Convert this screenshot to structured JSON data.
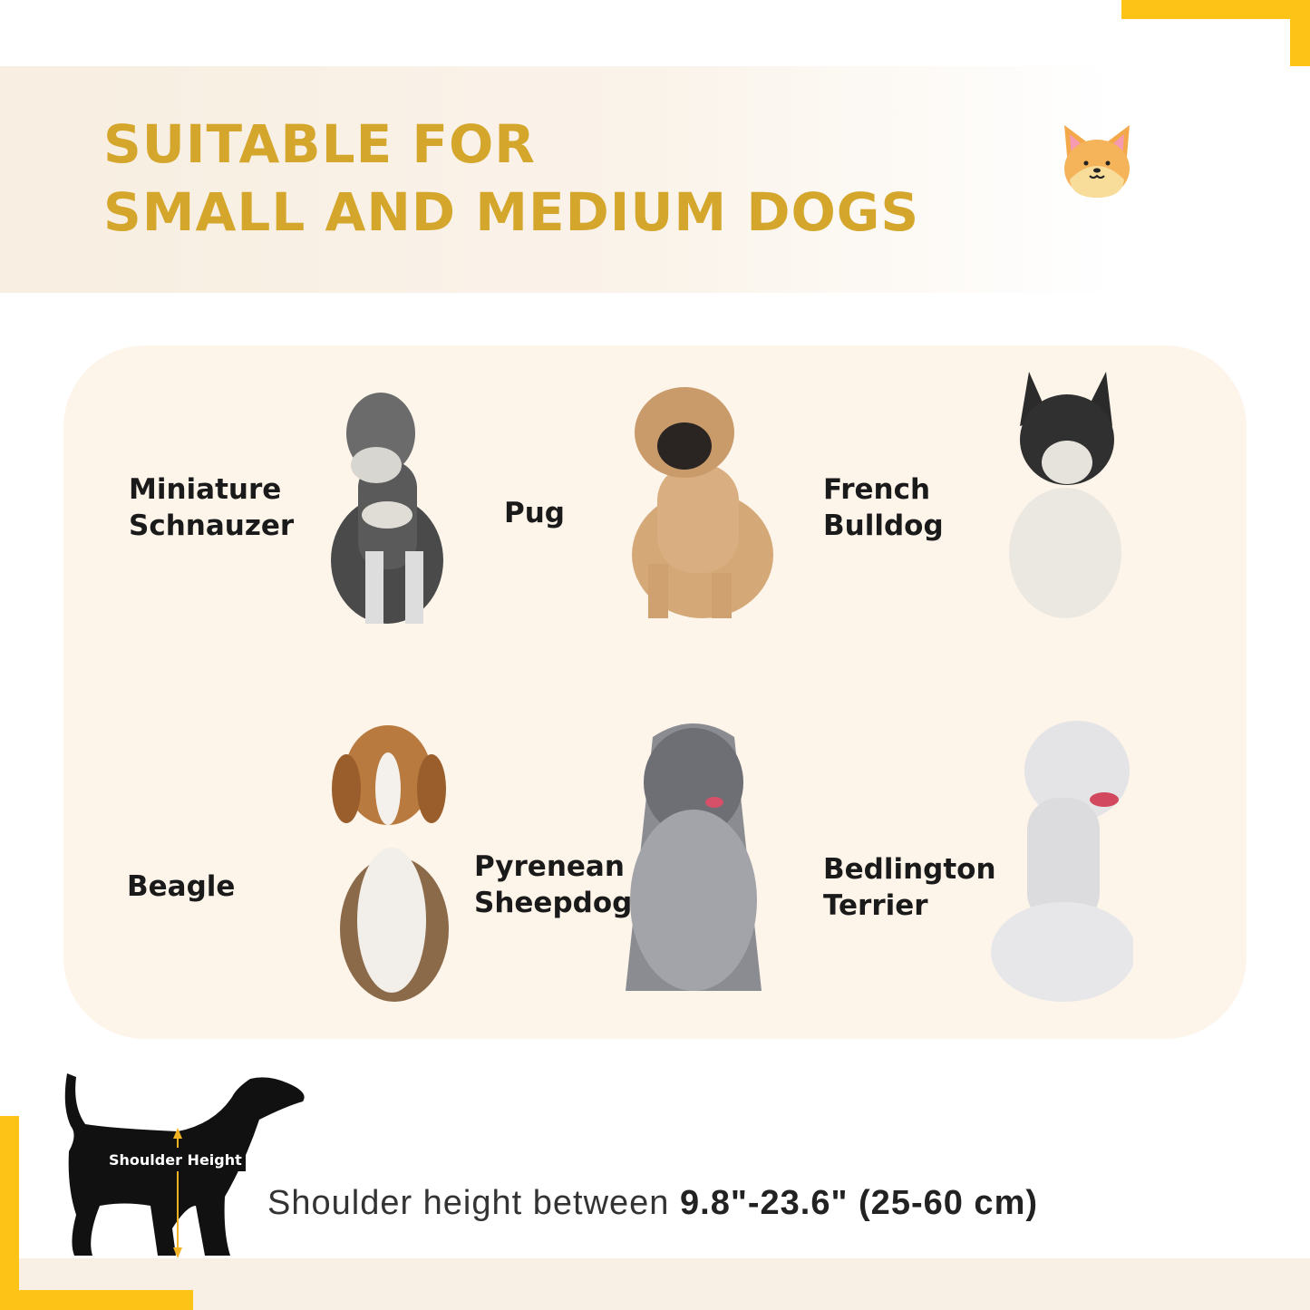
{
  "header": {
    "title_line1": "SUITABLE FOR",
    "title_line2": "SMALL AND MEDIUM DOGS",
    "icon": "corgi-face-icon"
  },
  "breeds": [
    {
      "line1": "Miniature",
      "line2": "Schnauzer"
    },
    {
      "line1": "Pug",
      "line2": ""
    },
    {
      "line1": "French",
      "line2": "Bulldog"
    },
    {
      "line1": "Beagle",
      "line2": ""
    },
    {
      "line1": "Pyrenean",
      "line2": "Sheepdog"
    },
    {
      "line1": "Bedlington",
      "line2": "Terrier"
    }
  ],
  "measurement": {
    "diagram_label": "Shoulder Height",
    "text_prefix": "Shoulder height between ",
    "text_value": "9.8\"-23.6\" (25-60 cm)"
  },
  "colors": {
    "accent": "#fdc317",
    "title": "#d4a72c",
    "card": "#fdf4ea"
  }
}
